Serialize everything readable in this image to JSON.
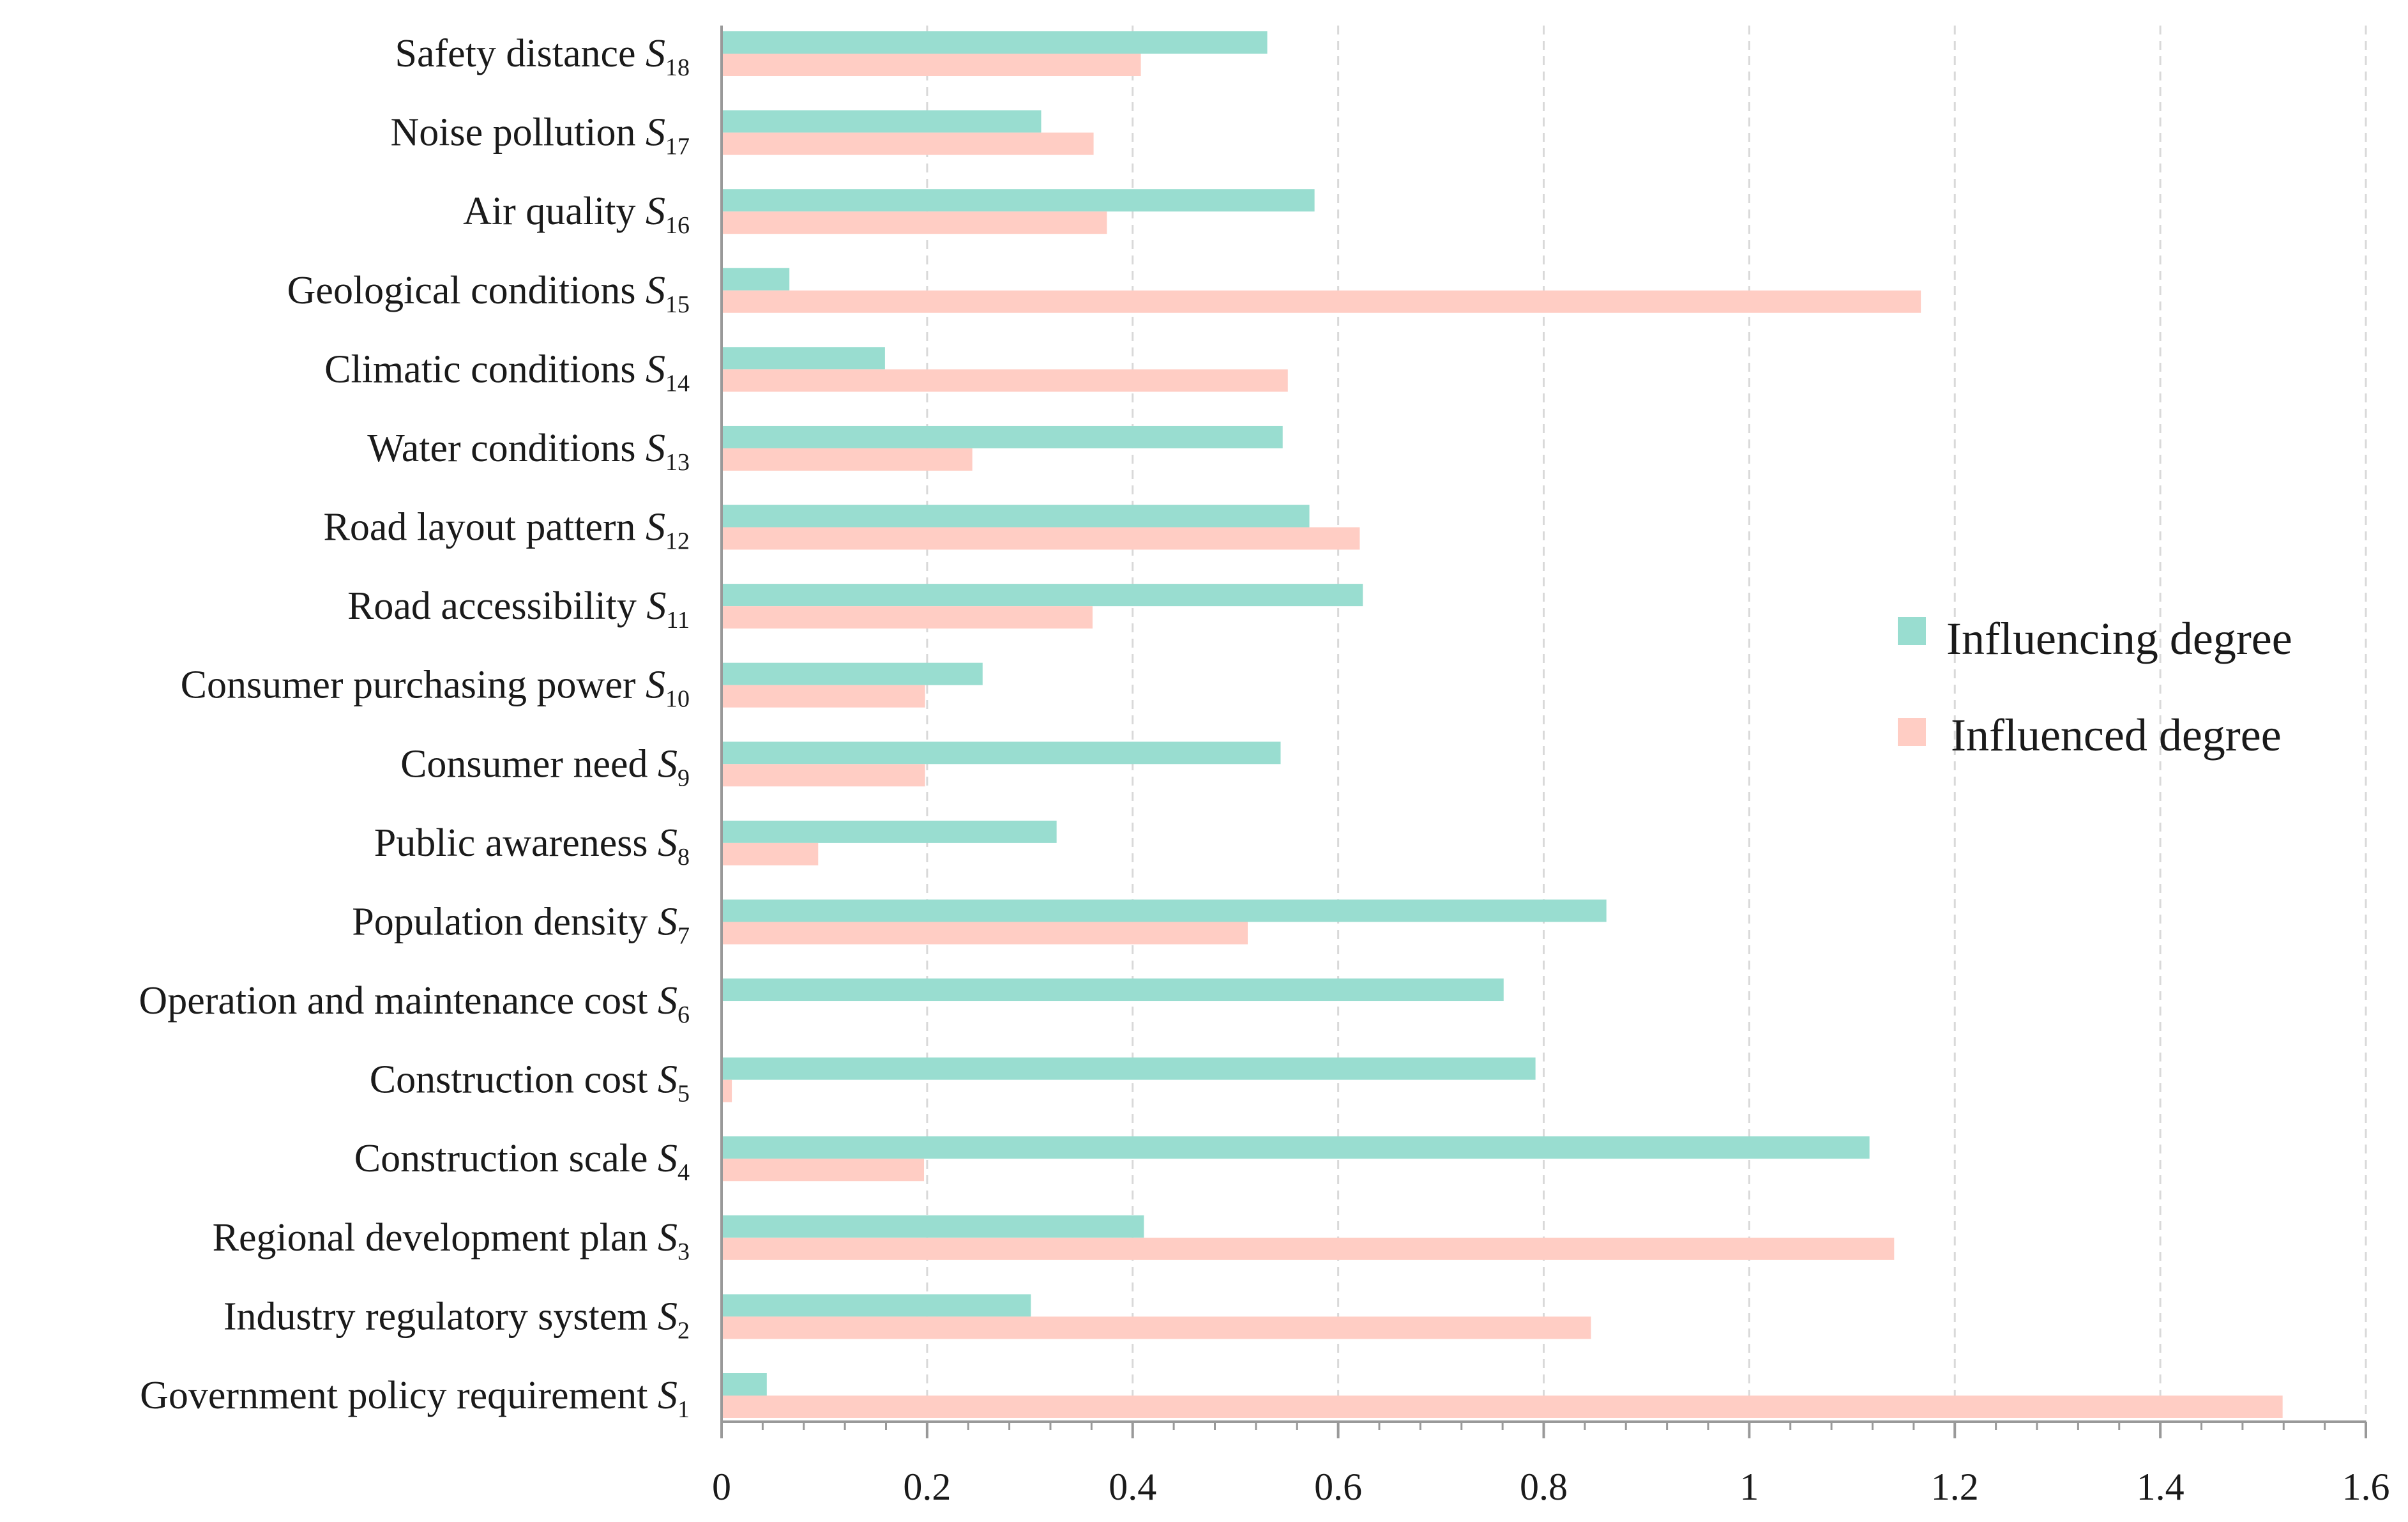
{
  "colors": {
    "influencing": "#99DDD0",
    "influenced": "#FFCDC4",
    "axis": "#999999",
    "grid": "#d9d9d9"
  },
  "chart_data": {
    "type": "bar",
    "orientation": "horizontal",
    "title": "",
    "xlabel": "",
    "ylabel": "",
    "xlim": [
      0,
      1.6
    ],
    "xticks": [
      0,
      0.2,
      0.4,
      0.6,
      0.8,
      1,
      1.2,
      1.4,
      1.6
    ],
    "xtick_labels": [
      "0",
      "0.2",
      "0.4",
      "0.6",
      "0.8",
      "1",
      "1.2",
      "1.4",
      "1.6"
    ],
    "grid": "vertical-dashed",
    "legend_position": "right",
    "categories": [
      {
        "label": "Government policy requirement",
        "sym": "S",
        "sub": "1"
      },
      {
        "label": "Industry regulatory system",
        "sym": "S",
        "sub": "2"
      },
      {
        "label": "Regional development plan",
        "sym": "S",
        "sub": "3"
      },
      {
        "label": "Construction scale",
        "sym": "S",
        "sub": "4"
      },
      {
        "label": "Construction cost",
        "sym": "S",
        "sub": "5"
      },
      {
        "label": "Operation and maintenance cost",
        "sym": "S",
        "sub": "6"
      },
      {
        "label": "Population density",
        "sym": "S",
        "sub": "7"
      },
      {
        "label": "Public awareness",
        "sym": "S",
        "sub": "8"
      },
      {
        "label": "Consumer need",
        "sym": "S",
        "sub": "9"
      },
      {
        "label": "Consumer purchasing power",
        "sym": "S",
        "sub": "10"
      },
      {
        "label": "Road accessibility",
        "sym": "S",
        "sub": "11"
      },
      {
        "label": "Road layout pattern",
        "sym": "S",
        "sub": "12"
      },
      {
        "label": "Water conditions",
        "sym": "S",
        "sub": "13"
      },
      {
        "label": "Climatic conditions",
        "sym": "S",
        "sub": "14"
      },
      {
        "label": "Geological conditions",
        "sym": "S",
        "sub": "15"
      },
      {
        "label": "Air quality",
        "sym": "S",
        "sub": "16"
      },
      {
        "label": "Noise pollution",
        "sym": "S",
        "sub": "17"
      },
      {
        "label": "Safety distance",
        "sym": "S",
        "sub": "18"
      }
    ],
    "series": [
      {
        "name": "Influencing degree",
        "color_key": "influencing",
        "values": [
          0.044,
          0.301,
          0.411,
          1.117,
          0.792,
          0.761,
          0.861,
          0.326,
          0.544,
          0.254,
          0.624,
          0.572,
          0.546,
          0.159,
          0.066,
          0.577,
          0.311,
          0.531
        ]
      },
      {
        "name": "Influenced degree",
        "color_key": "influenced",
        "values": [
          1.519,
          0.846,
          1.141,
          0.197,
          0.01,
          0.0,
          0.512,
          0.094,
          0.198,
          0.198,
          0.361,
          0.621,
          0.244,
          0.551,
          1.167,
          0.375,
          0.362,
          0.408
        ]
      }
    ]
  }
}
